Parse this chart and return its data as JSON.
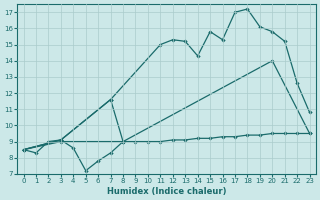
{
  "bg_color": "#cce8e8",
  "grid_color": "#aacccc",
  "line_color": "#1a6b6b",
  "xlabel": "Humidex (Indice chaleur)",
  "xlim": [
    -0.5,
    23.5
  ],
  "ylim": [
    7,
    17.5
  ],
  "yticks": [
    7,
    8,
    9,
    10,
    11,
    12,
    13,
    14,
    15,
    16,
    17
  ],
  "xticks": [
    0,
    1,
    2,
    3,
    4,
    5,
    6,
    7,
    8,
    9,
    10,
    11,
    12,
    13,
    14,
    15,
    16,
    17,
    18,
    19,
    20,
    21,
    22,
    23
  ],
  "line1_x": [
    0,
    1,
    2,
    3,
    4,
    5,
    6,
    7,
    8
  ],
  "line1_y": [
    8.5,
    8.3,
    9.0,
    9.1,
    8.6,
    7.2,
    7.8,
    8.3,
    9.0
  ],
  "line2_x": [
    0,
    3,
    7,
    11,
    12,
    13,
    14,
    15,
    16,
    17,
    18,
    19,
    20,
    21,
    22,
    23
  ],
  "line2_y": [
    8.5,
    9.1,
    11.6,
    15.0,
    15.3,
    15.2,
    14.3,
    15.8,
    15.3,
    17.0,
    17.2,
    16.1,
    15.8,
    15.2,
    12.6,
    10.8
  ],
  "line3_x": [
    0,
    3,
    7,
    8,
    20,
    23
  ],
  "line3_y": [
    8.5,
    9.1,
    11.6,
    9.0,
    14.0,
    9.5
  ],
  "line4_x": [
    0,
    3,
    8,
    9,
    10,
    11,
    12,
    13,
    14,
    15,
    16,
    17,
    18,
    19,
    20,
    21,
    22,
    23
  ],
  "line4_y": [
    8.5,
    9.0,
    9.0,
    9.0,
    9.0,
    9.0,
    9.1,
    9.1,
    9.2,
    9.2,
    9.3,
    9.3,
    9.4,
    9.4,
    9.5,
    9.5,
    9.5,
    9.5
  ]
}
